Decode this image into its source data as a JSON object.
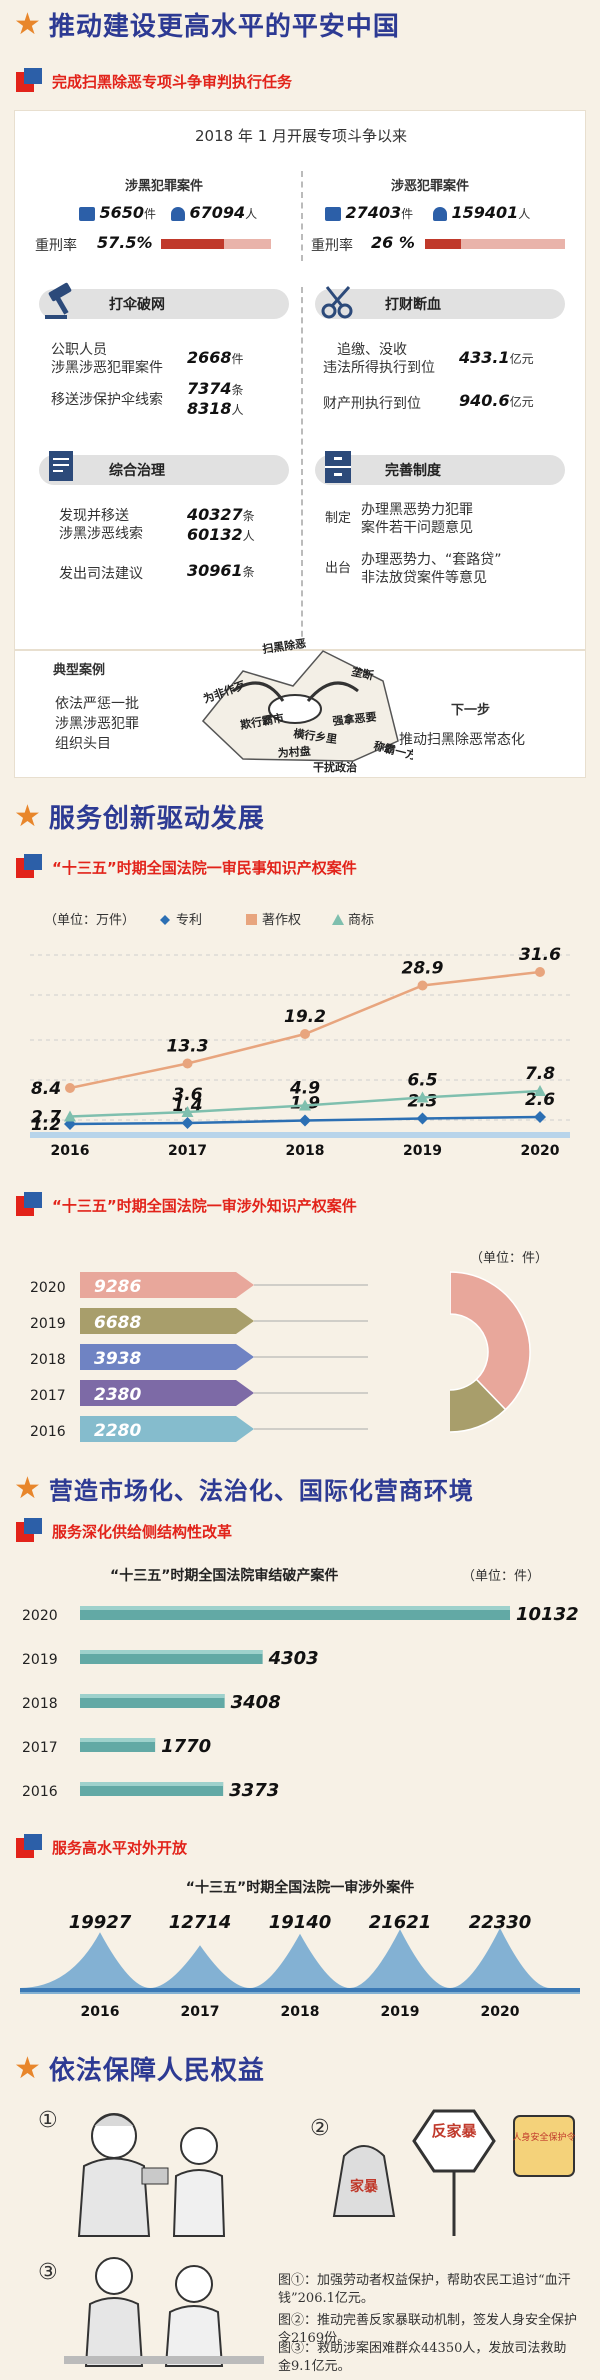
{
  "sec1": {
    "title": "推动建设更高水平的平安中国",
    "sub": "完成扫黑除恶专项斗争审判执行任务",
    "since": "2018 年 1 月开展专项斗争以来",
    "left_h": "涉黑犯罪案件",
    "left_cases": "5650",
    "left_cases_u": "件",
    "left_people": "67094",
    "left_people_u": "人",
    "left_rate_l": "重刑率",
    "left_rate": "57.5%",
    "left_rate_v": 57.5,
    "right_h": "涉恶犯罪案件",
    "right_cases": "27403",
    "right_cases_u": "件",
    "right_people": "159401",
    "right_people_u": "人",
    "right_rate_l": "重刑率",
    "right_rate": "26 %",
    "right_rate_v": 26,
    "p1_h": "打伞破网",
    "p1_l1": "公职人员",
    "p1_l2": "涉黑涉恶犯罪案件",
    "p1_v1": "2668",
    "p1_u1": "件",
    "p1_l3": "移送涉保护伞线索",
    "p1_v2": "7374",
    "p1_u2": "条",
    "p1_v3": "8318",
    "p1_u3": "人",
    "p2_h": "打财断血",
    "p2_l1": "追缴、没收",
    "p2_l2": "违法所得执行到位",
    "p2_v1": "433.1",
    "p2_u1": "亿元",
    "p2_l3": "财产刑执行到位",
    "p2_v2": "940.6",
    "p2_u2": "亿元",
    "p3_h": "综合治理",
    "p3_l1": "发现并移送",
    "p3_l2": "涉黑涉恶线索",
    "p3_v1": "40327",
    "p3_u1": "条",
    "p3_v2": "60132",
    "p3_u2": "人",
    "p3_l3": "发出司法建议",
    "p3_v3": "30961",
    "p3_u3": "条",
    "p4_h": "完善制度",
    "p4_t1": "制定",
    "p4_d1a": "办理黑恶势力犯罪",
    "p4_d1b": "案件若干问题意见",
    "p4_t2": "出台",
    "p4_d2a": "办理恶势力、“套路贷”",
    "p4_d2b": "非法放贷案件等意见",
    "case_h": "典型案例",
    "case_a": "依法严惩一批",
    "case_b": "涉黑涉恶犯罪",
    "case_c": "组织头目",
    "next_h": "下一步",
    "next_t": "推动扫黑除恶常态化",
    "ill_words": [
      "扫黑除恶",
      "为非作歹",
      "欺行霸市",
      "横行乡里",
      "强拿恶要",
      "垄断",
      "为村盘",
      "称霸一方",
      "干扰政治"
    ]
  },
  "sec2": {
    "title": "服务创新驱动发展"
  },
  "chart_data": [
    {
      "type": "line",
      "title": "“十三五”时期全国法院一审民事知识产权案件",
      "unit": "（单位：万件）",
      "x": [
        "2016",
        "2017",
        "2018",
        "2019",
        "2020"
      ],
      "series": [
        {
          "name": "专利",
          "values": [
            1.2,
            1.4,
            1.9,
            2.3,
            2.6
          ],
          "color": "#2c6fb3"
        },
        {
          "name": "著作权",
          "values": [
            8.4,
            13.3,
            19.2,
            28.9,
            31.6
          ],
          "color": "#e8a57e"
        },
        {
          "name": "商标",
          "values": [
            2.7,
            3.6,
            4.9,
            6.5,
            7.8
          ],
          "color": "#7fbfae"
        }
      ],
      "ylim": [
        0,
        34
      ]
    },
    {
      "type": "bar",
      "title": "“十三五”时期全国法院一审涉外知识产权案件",
      "unit": "（单位：件）",
      "categories": [
        "2020",
        "2019",
        "2018",
        "2017",
        "2016"
      ],
      "values": [
        9286,
        6688,
        3938,
        2380,
        2280
      ],
      "colors": [
        "#e8a79b",
        "#a89e6b",
        "#6f83c3",
        "#7d6aa6",
        "#85bccd"
      ]
    },
    {
      "type": "bar",
      "title": "“十三五”时期全国法院审结破产案件",
      "unit": "（单位：件）",
      "categories": [
        "2020",
        "2019",
        "2018",
        "2017",
        "2016"
      ],
      "values": [
        10132,
        4303,
        3408,
        1770,
        3373
      ],
      "color": "#62a9a5"
    },
    {
      "type": "area",
      "title": "“十三五”时期全国法院一审涉外案件",
      "x": [
        "2016",
        "2017",
        "2018",
        "2019",
        "2020"
      ],
      "values": [
        19927,
        12714,
        19140,
        21621,
        22330
      ],
      "color": "#6fa6cf"
    }
  ],
  "sec3": {
    "title": "营造市场化、法治化、国际化营商环境",
    "sub1": "服务深化供给侧结构性改革",
    "sub2": "服务高水平对外开放"
  },
  "sec4": {
    "title": "依法保障人民权益",
    "n1": "①",
    "n2": "②",
    "n3": "③",
    "cap1": "图①：加强劳动者权益保护，帮助农民工追讨“血汗钱”206.1亿元。",
    "cap2": "图②：推动完善反家暴联动机制，签发人身安全保护令2169份。",
    "cap3": "图③：救助涉案困难群众44350人，发放司法救助金9.1亿元。",
    "sign1": "反家暴",
    "sign2": "人身安全保护令",
    "tag": "家暴"
  },
  "colors": {
    "accent": "#e8862b",
    "title": "#2d3a93",
    "red": "#e2231a",
    "blue": "#2c5fa8"
  }
}
